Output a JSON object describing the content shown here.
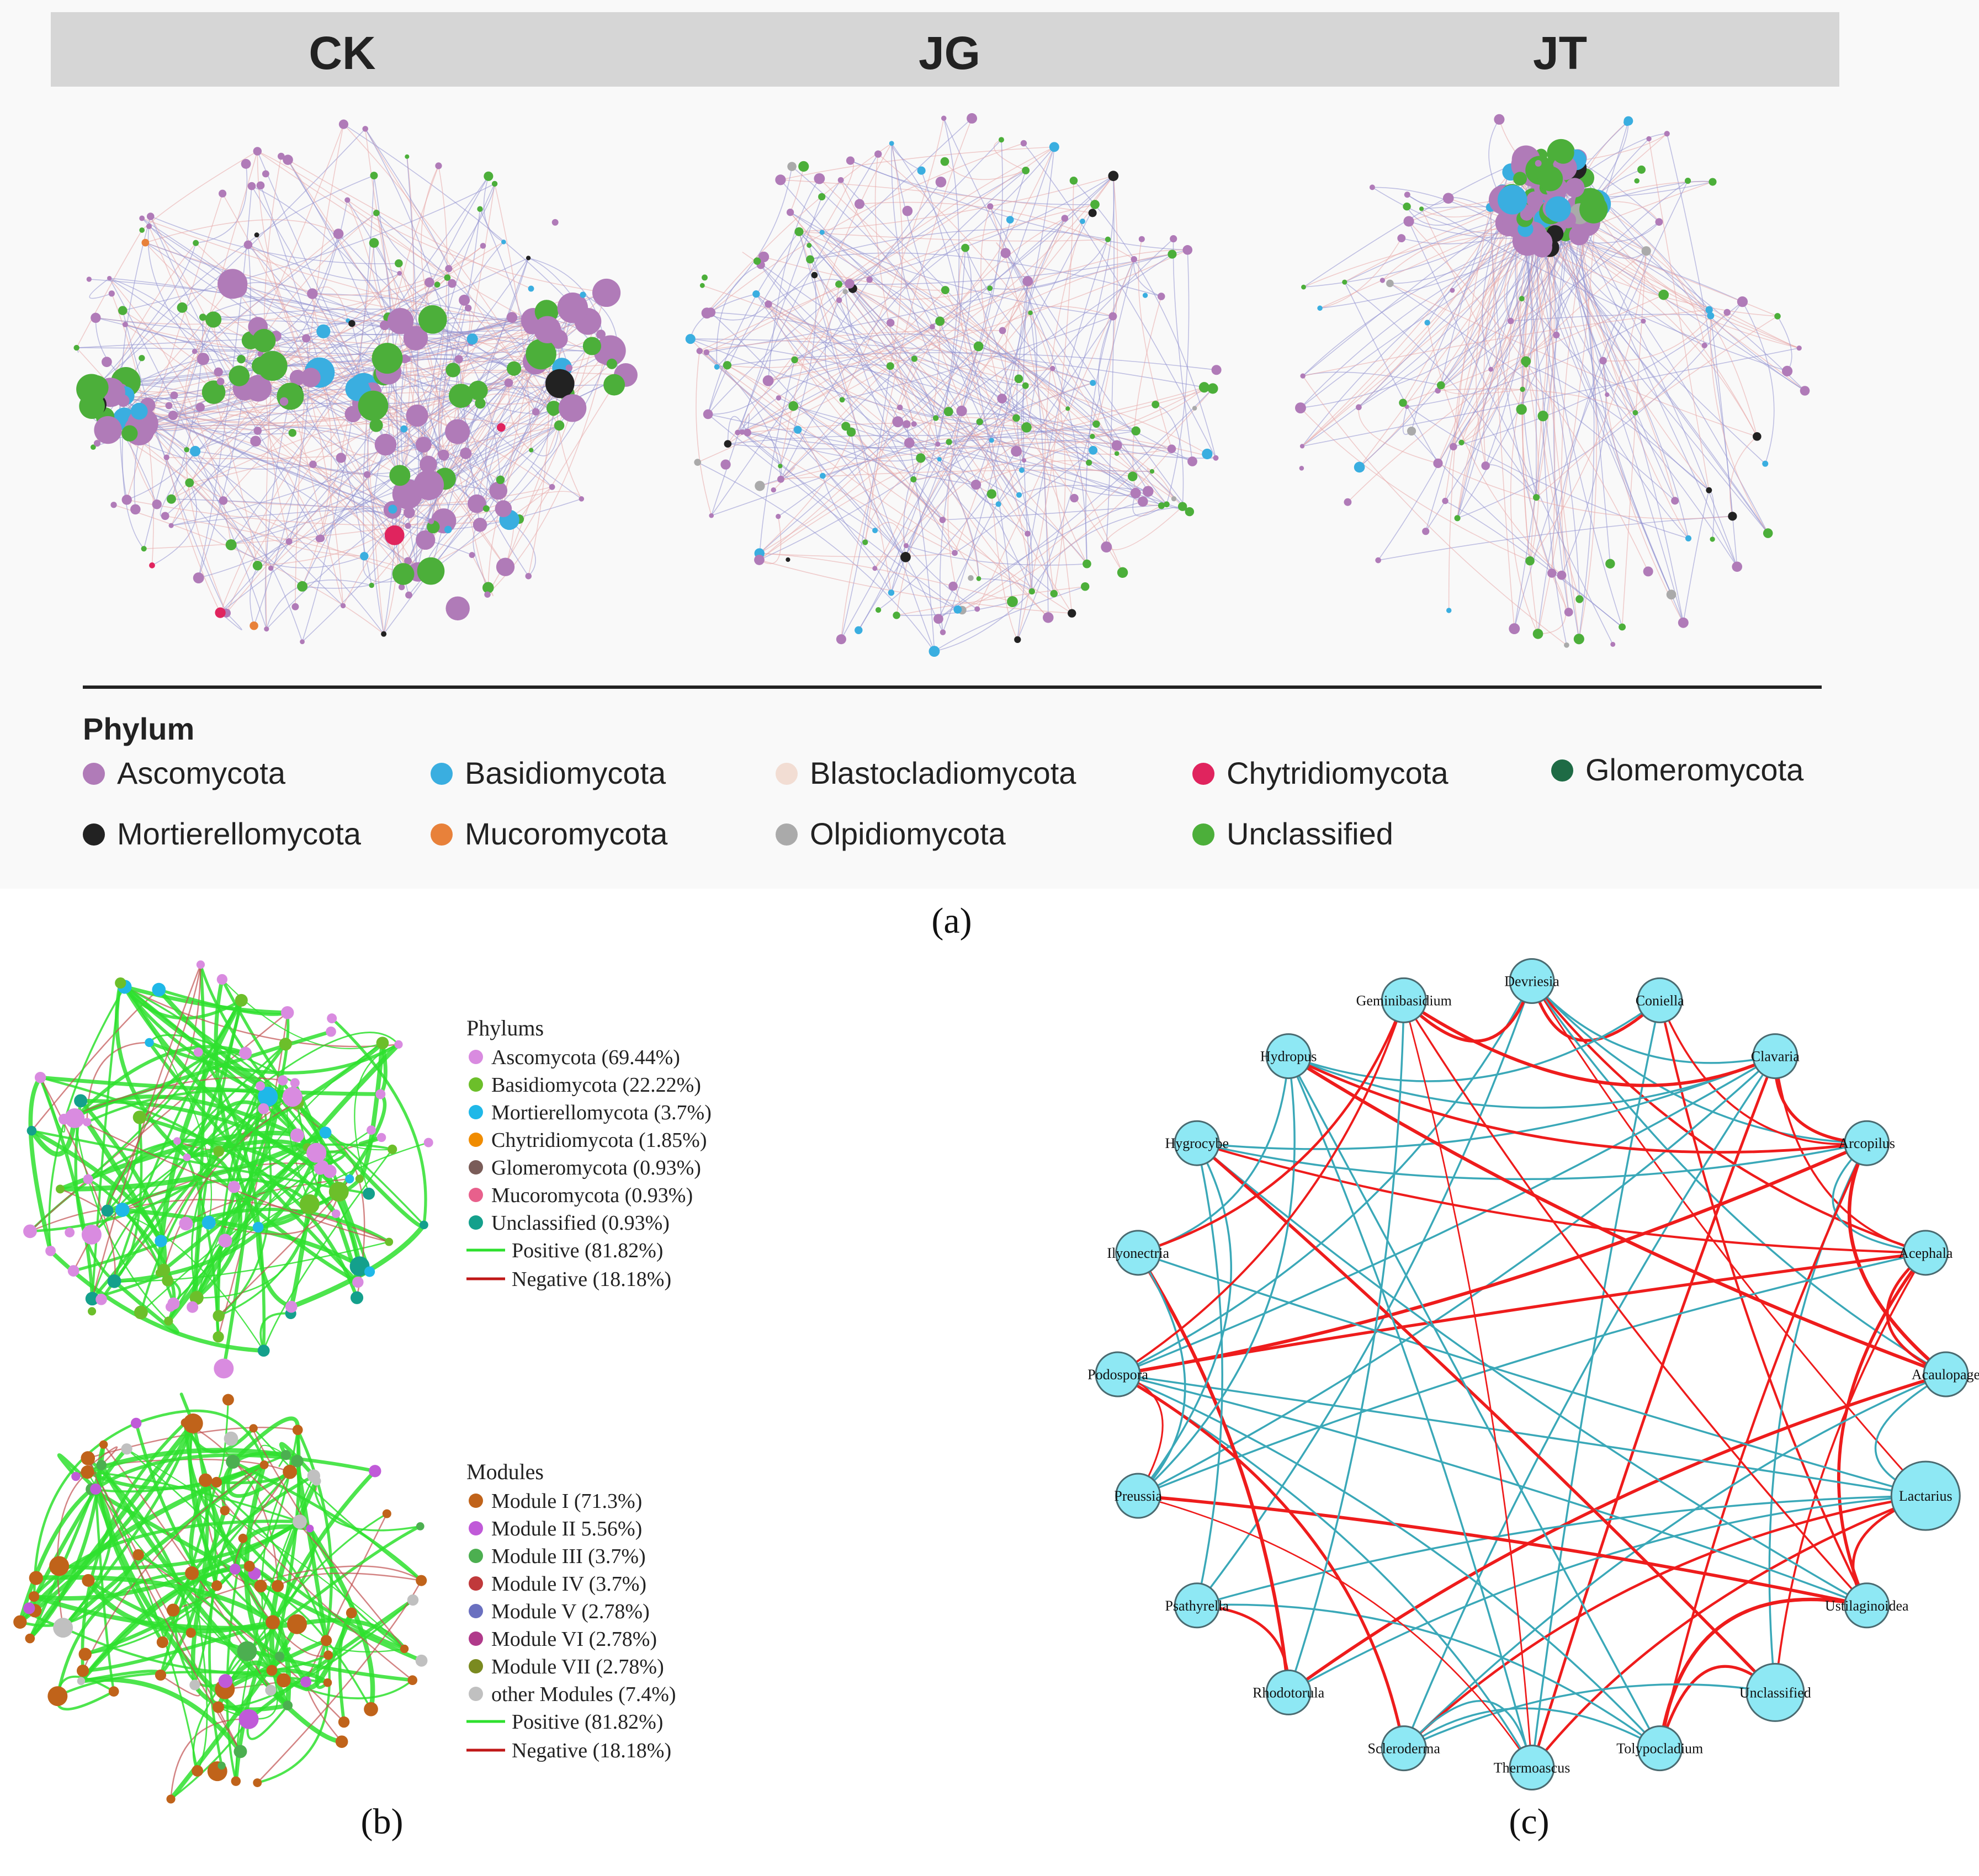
{
  "panel_a": {
    "groups": [
      "CK",
      "JG",
      "JT"
    ],
    "legend_title": "Phylum",
    "legend": [
      {
        "label": "Ascomycota",
        "color": "#b07bb8"
      },
      {
        "label": "Basidiomycota",
        "color": "#3aaee0"
      },
      {
        "label": "Blastocladiomycota",
        "color": "#f2ddd3"
      },
      {
        "label": "Chytridiomycota",
        "color": "#e0245e"
      },
      {
        "label": "Glomeromycota",
        "color": "#1e6b45"
      },
      {
        "label": "Mortierellomycota",
        "color": "#222222"
      },
      {
        "label": "Mucoromycota",
        "color": "#e8813a"
      },
      {
        "label": "Olpidiomycota",
        "color": "#aaaaaa"
      },
      {
        "label": "Unclassified",
        "color": "#4caf3a"
      }
    ],
    "caption": "(a)"
  },
  "panel_b": {
    "phylum_title": "Phylums",
    "phylums": [
      {
        "label": "Ascomycota (69.44%)",
        "color": "#d98be0"
      },
      {
        "label": "Basidiomycota  (22.22%)",
        "color": "#6cbf2a"
      },
      {
        "label": "Mortierellomycota (3.7%)",
        "color": "#1fb8e8"
      },
      {
        "label": "Chytridiomycota (1.85%)",
        "color": "#f08c00"
      },
      {
        "label": "Glomeromycota (0.93%)",
        "color": "#7a5c58"
      },
      {
        "label": "Mucoromycota (0.93%)",
        "color": "#e8608c"
      },
      {
        "label": "Unclassified (0.93%)",
        "color": "#14a08c"
      }
    ],
    "module_title": "Modules",
    "modules": [
      {
        "label": "Module I (71.3%)",
        "color": "#c0631a"
      },
      {
        "label": "Module II    5.56%)",
        "color": "#c05ad8"
      },
      {
        "label": "Module III (3.7%)",
        "color": "#4caf50"
      },
      {
        "label": "Module IV  (3.7%)",
        "color": "#c0393b"
      },
      {
        "label": "Module V (2.78%)",
        "color": "#6a70c0"
      },
      {
        "label": "Module VI (2.78%)",
        "color": "#b03a8a"
      },
      {
        "label": "Module VII (2.78%)",
        "color": "#7a8a20"
      },
      {
        "label": "other Modules (7.4%)",
        "color": "#c0c0c0"
      }
    ],
    "edges": [
      {
        "label": "Positive (81.82%)",
        "color": "#2ee02e"
      },
      {
        "label": "Negative (18.18%)",
        "color": "#c01818"
      }
    ],
    "caption": "(b)"
  },
  "panel_c": {
    "nodes": [
      "Devriesia",
      "Coniella",
      "Clavaria",
      "Arcopilus",
      "Acephala",
      "Acaulopage",
      "Lactarius",
      "Ustilaginoidea",
      "Unclassified",
      "Tolypocladium",
      "Thermoascus",
      "Scleroderma",
      "Rhodotorula",
      "Psathyrella",
      "Preussia",
      "Podospora",
      "Ilyonectria",
      "Hygrocybe",
      "Hydropus",
      "Geminibasidium"
    ],
    "caption": "(c)"
  },
  "colors": {
    "header_bar": "#d6d6d6",
    "node_c": "#8ee8f4",
    "edge_pos_c": "#3aa8b8",
    "edge_neg_c": "#ee1c1c"
  }
}
